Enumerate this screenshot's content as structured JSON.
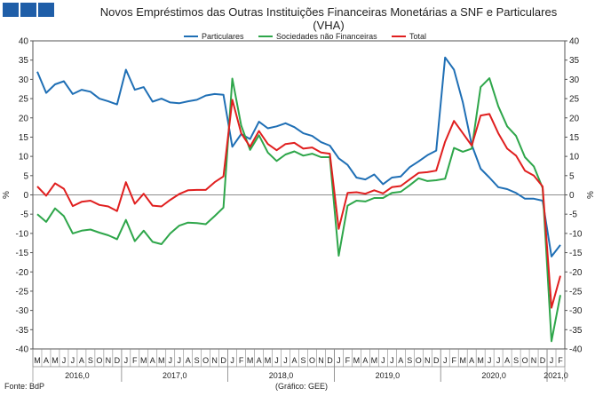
{
  "header": {
    "title_line1": "Novos Empréstimos das Outras Instituições Financeiras Monetárias a SNF e Particulares",
    "title_line2": "(VHA)"
  },
  "footer": {
    "source": "Fonte: BdP",
    "chart_credit": "(Gráfico: GEE)"
  },
  "chart_data": {
    "type": "line",
    "title": "Novos Empréstimos das Outras Instituições Financeiras Monetárias a SNF e Particulares (VHA)",
    "ylabel_left": "%",
    "ylabel_right": "%",
    "ylim": [
      -40,
      40
    ],
    "yticks": [
      -40,
      -35,
      -30,
      -25,
      -20,
      -15,
      -10,
      -5,
      0,
      5,
      10,
      15,
      20,
      25,
      30,
      35,
      40
    ],
    "grid": false,
    "legend_position": "top-center",
    "month_labels": [
      "M",
      "A",
      "M",
      "J",
      "J",
      "A",
      "S",
      "O",
      "N",
      "D",
      "J",
      "F",
      "M",
      "A",
      "M",
      "J",
      "J",
      "A",
      "S",
      "O",
      "N",
      "D",
      "J",
      "F",
      "M",
      "A",
      "M",
      "J",
      "J",
      "A",
      "S",
      "O",
      "N",
      "D",
      "J",
      "F",
      "M",
      "A",
      "M",
      "J",
      "J",
      "A",
      "S",
      "O",
      "N",
      "D",
      "J",
      "F",
      "M",
      "A",
      "M",
      "J",
      "J",
      "A",
      "S",
      "O",
      "N",
      "D",
      "J",
      "F"
    ],
    "years": [
      {
        "label": "2016,0",
        "start": 0,
        "end": 9
      },
      {
        "label": "2017,0",
        "start": 10,
        "end": 21
      },
      {
        "label": "2018,0",
        "start": 22,
        "end": 33
      },
      {
        "label": "2019,0",
        "start": 34,
        "end": 45
      },
      {
        "label": "2020,0",
        "start": 46,
        "end": 57
      },
      {
        "label": "2021,0",
        "start": 58,
        "end": 59
      }
    ],
    "series": [
      {
        "name": "Particulares",
        "color": "#1f6fb5",
        "values": [
          32,
          26.5,
          28.7,
          29.5,
          26.2,
          27.3,
          26.8,
          25,
          24.3,
          23.5,
          32.5,
          27.3,
          28,
          24.2,
          25,
          24,
          23.8,
          24.3,
          24.7,
          25.8,
          26.2,
          26,
          12.5,
          15.8,
          14.5,
          19,
          17.3,
          17.8,
          18.6,
          17.6,
          16,
          15.3,
          13.7,
          12.8,
          9.5,
          7.8,
          4.5,
          4,
          5.3,
          2.8,
          4.5,
          4.8,
          7.2,
          8.7,
          10.3,
          11.5,
          35.7,
          32.5,
          24,
          13,
          6.8,
          4.5,
          2,
          1.5,
          0.5,
          -1,
          -1,
          -1.5,
          -16,
          -13
        ]
      },
      {
        "name": "Sociedades não Financeiras",
        "color": "#2ea64a",
        "values": [
          -5,
          -7,
          -3.5,
          -5.5,
          -10,
          -9.3,
          -9,
          -9.8,
          -10.5,
          -11.5,
          -6.5,
          -12,
          -9.3,
          -12.2,
          -12.8,
          -10,
          -8,
          -7.2,
          -7.3,
          -7.6,
          -5.5,
          -3.3,
          30.2,
          18,
          11.7,
          15.5,
          11,
          8.8,
          10.5,
          11.3,
          10.2,
          10.7,
          9.8,
          9.8,
          -15.8,
          -2.8,
          -1.5,
          -1.7,
          -0.8,
          -0.8,
          0.5,
          0.8,
          2.5,
          4.3,
          3.6,
          3.8,
          4.2,
          12.2,
          11.2,
          12,
          28,
          30.3,
          23,
          17.8,
          15.3,
          9.8,
          7.4,
          1.8,
          -38,
          -26
        ]
      },
      {
        "name": "Total",
        "color": "#e01f1f",
        "values": [
          2.2,
          -0.2,
          3,
          1.6,
          -2.9,
          -1.8,
          -1.5,
          -2.6,
          -3,
          -4.2,
          3.3,
          -2.3,
          0.3,
          -2.8,
          -3,
          -1.3,
          0.2,
          1.2,
          1.3,
          1.3,
          3.3,
          4.8,
          24.7,
          16,
          12.5,
          16.6,
          13.2,
          11.6,
          13.2,
          13.5,
          12,
          12.3,
          11,
          10.7,
          -8.8,
          0.5,
          0.7,
          0.3,
          1.2,
          0.4,
          2,
          2.3,
          4,
          5.7,
          5.9,
          6.3,
          13.8,
          19.2,
          16,
          12.8,
          20.6,
          21,
          16,
          12,
          10.2,
          6.3,
          5,
          2.2,
          -29.3,
          -21
        ]
      }
    ]
  }
}
